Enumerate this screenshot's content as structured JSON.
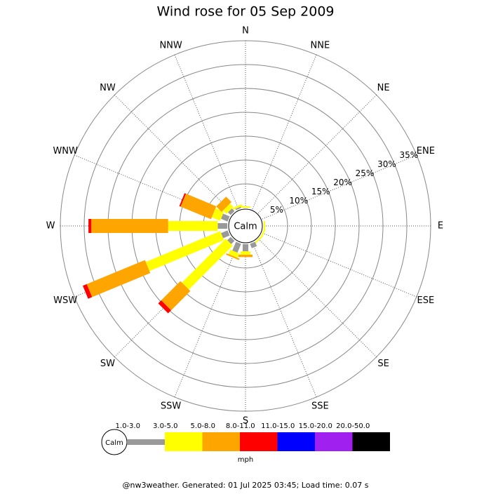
{
  "chart_data": {
    "type": "windrose",
    "title": "Wind rose for 05 Sep 2009",
    "calm_label": "Calm",
    "unit_label": "mph",
    "footer": "@nw3weather. Generated: 01 Jul 2025 03:45; Load time: 0.07 s",
    "categories": [
      "N",
      "NNE",
      "NE",
      "ENE",
      "E",
      "ESE",
      "SE",
      "SSE",
      "S",
      "SSW",
      "SW",
      "WSW",
      "W",
      "WNW",
      "NW",
      "NNW"
    ],
    "rlim": [
      0,
      35
    ],
    "rticks": [
      {
        "value": 5,
        "label": "5%"
      },
      {
        "value": 10,
        "label": "10%"
      },
      {
        "value": 15,
        "label": "15%"
      },
      {
        "value": 20,
        "label": "20%"
      },
      {
        "value": 25,
        "label": "25%"
      },
      {
        "value": 30,
        "label": "30%"
      },
      {
        "value": 35,
        "label": "35%"
      }
    ],
    "series": [
      {
        "name": "1.0-3.0",
        "color": "#999999",
        "values": [
          0,
          0,
          0,
          0,
          0,
          0,
          0,
          1,
          1.5,
          2,
          1,
          1.5,
          2,
          1.5,
          0.8,
          0.3
        ]
      },
      {
        "name": "3.0-5.0",
        "color": "#ffff00",
        "values": [
          0.3,
          0,
          0,
          0,
          0.3,
          0.3,
          0.3,
          0,
          0.7,
          1,
          13,
          16.9,
          10.4,
          1.9,
          1,
          0.4
        ]
      },
      {
        "name": "5.0-8.0",
        "color": "#ffa500",
        "values": [
          0,
          0,
          0,
          0,
          0,
          0,
          0,
          0,
          0.5,
          0.3,
          5.7,
          13.2,
          16.1,
          6.9,
          1.6,
          0
        ]
      },
      {
        "name": "8.0-11.0",
        "color": "#ff0000",
        "values": [
          0,
          0,
          0,
          0,
          0,
          0,
          0,
          0,
          0,
          0,
          0.9,
          0.9,
          0.6,
          0.3,
          0,
          0
        ]
      },
      {
        "name": "11.0-15.0",
        "color": "#0000ff",
        "values": [
          0,
          0,
          0,
          0,
          0,
          0,
          0,
          0,
          0,
          0,
          0,
          0,
          0,
          0,
          0,
          0
        ]
      },
      {
        "name": "15.0-20.0",
        "color": "#a020f0",
        "values": [
          0,
          0,
          0,
          0,
          0,
          0,
          0,
          0,
          0,
          0,
          0,
          0,
          0,
          0,
          0,
          0
        ]
      },
      {
        "name": "20.0-50.0",
        "color": "#000000",
        "values": [
          0,
          0,
          0,
          0,
          0,
          0,
          0,
          0,
          0,
          0,
          0,
          0,
          0,
          0,
          0,
          0
        ]
      }
    ]
  }
}
